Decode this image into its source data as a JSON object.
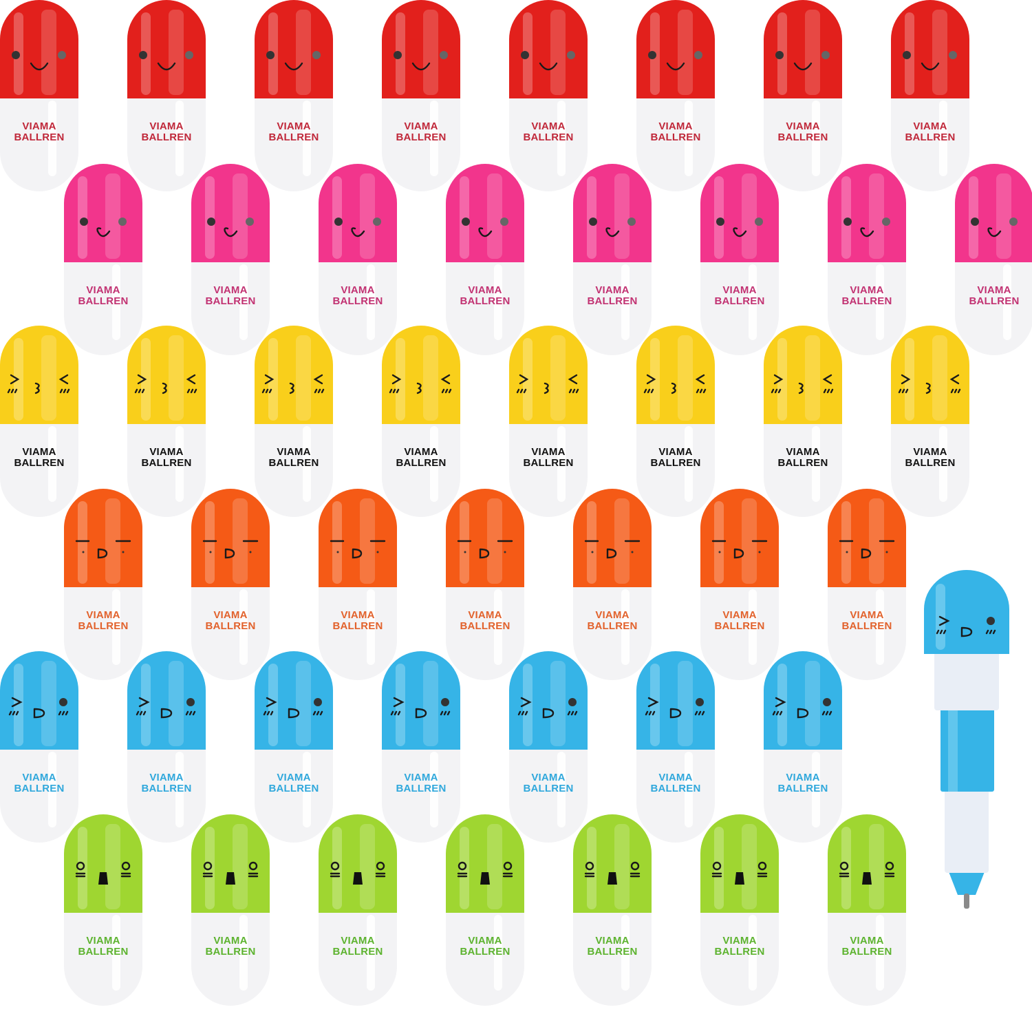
{
  "brand_text": [
    "VIAMA",
    "BALLREN"
  ],
  "rows": [
    {
      "cap_color": "#e2201c",
      "text_color": "#c0283a",
      "count": 8,
      "offset": false,
      "face": "dot-eyes-smile"
    },
    {
      "cap_color": "#f2358c",
      "text_color": "#c23272",
      "count": 8,
      "offset": true,
      "face": "dot-eyes-tongue"
    },
    {
      "cap_color": "#f9cf1b",
      "text_color": "#111111",
      "count": 8,
      "offset": false,
      "face": "squint-kiss"
    },
    {
      "cap_color": "#f55a16",
      "text_color": "#e2622c",
      "count": 7,
      "offset": true,
      "face": "flat-eyes-grin"
    },
    {
      "cap_color": "#36b4e7",
      "text_color": "#30a8dc",
      "count": 7,
      "offset": false,
      "face": "wink-grin"
    },
    {
      "cap_color": "#9fd631",
      "text_color": "#5db32f",
      "count": 7,
      "offset": true,
      "face": "surprised"
    }
  ],
  "pen": {
    "color": "#36b4e7",
    "face": "wink-grin"
  }
}
